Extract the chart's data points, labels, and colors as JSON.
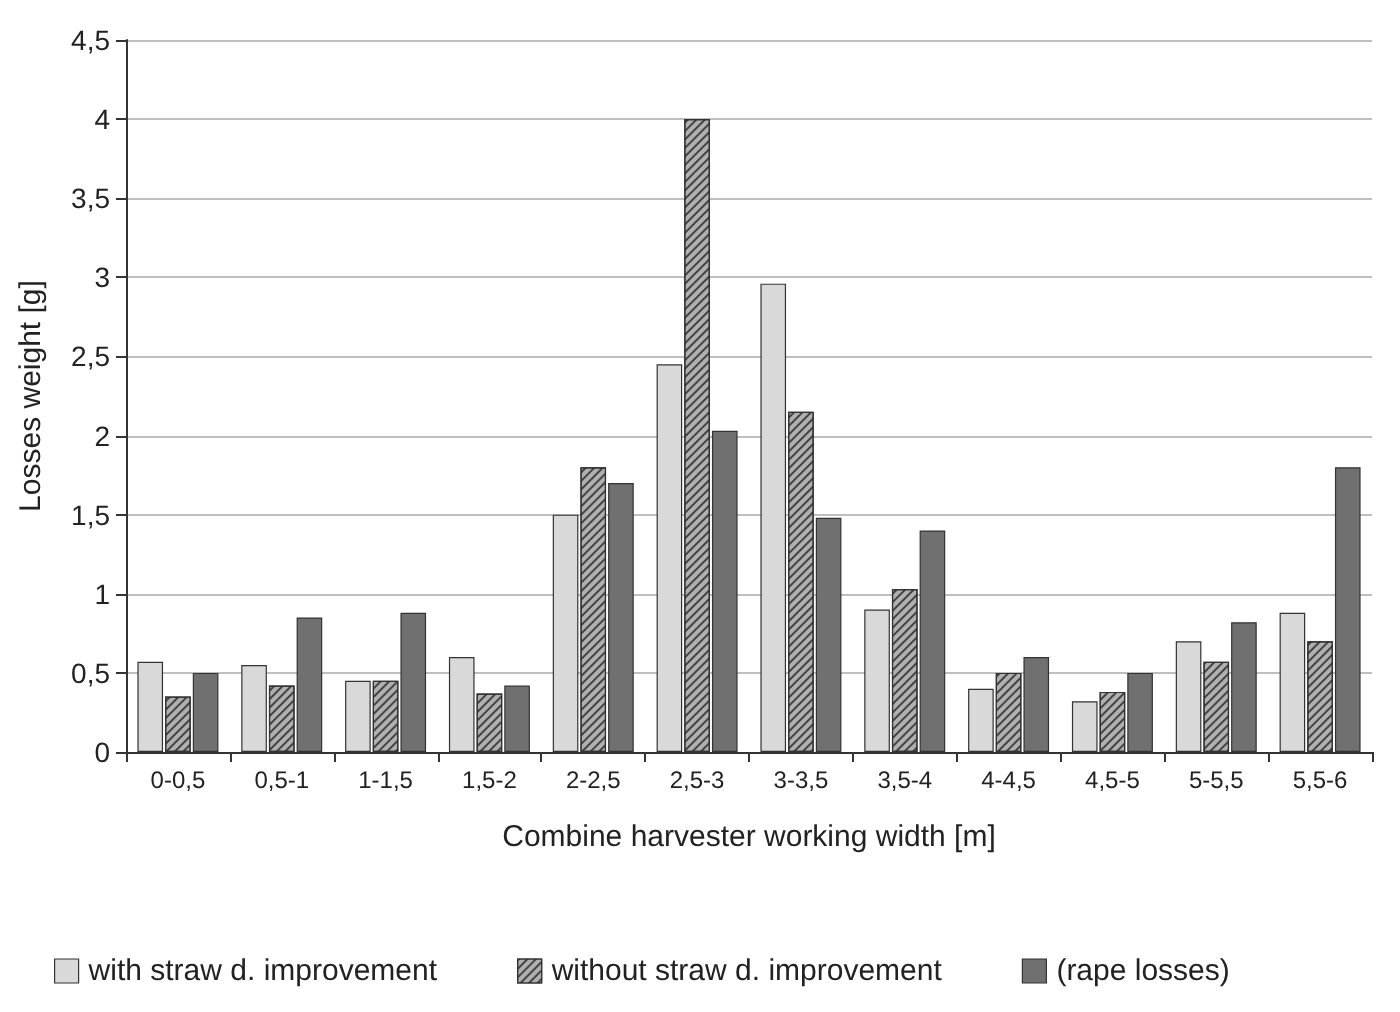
{
  "chart_data": {
    "type": "bar",
    "xlabel": "Combine harvester working width [m]",
    "ylabel": "Losses weight [g]",
    "categories": [
      "0-0,5",
      "0,5-1",
      "1-1,5",
      "1,5-2",
      "2-2,5",
      "2,5-3",
      "3-3,5",
      "3,5-4",
      "4-4,5",
      "4,5-5",
      "5-5,5",
      "5,5-6"
    ],
    "series": [
      {
        "name": "with straw d. improvement",
        "color": "#d9d9d9",
        "values": [
          0.57,
          0.55,
          0.45,
          0.6,
          1.5,
          2.45,
          2.96,
          0.9,
          0.4,
          0.32,
          0.7,
          0.88
        ]
      },
      {
        "name": "without straw d. improvement",
        "color": "#b0b0b0",
        "values": [
          0.35,
          0.42,
          0.45,
          0.37,
          1.8,
          4.0,
          2.15,
          1.03,
          0.5,
          0.38,
          0.57,
          0.7
        ]
      },
      {
        "name": "(rape losses)",
        "color": "#707070",
        "values": [
          0.5,
          0.85,
          0.88,
          0.42,
          1.7,
          2.03,
          1.48,
          1.4,
          0.6,
          0.5,
          0.82,
          1.8
        ]
      }
    ],
    "ylim": [
      0,
      4.5
    ],
    "yticks": [
      0,
      {
        "value": 0.5,
        "label": "0,5"
      },
      1,
      {
        "value": 1.5,
        "label": "1,5"
      },
      2,
      {
        "value": 2.5,
        "label": "2,5"
      },
      3,
      {
        "value": 3.5,
        "label": "3,5"
      },
      4,
      {
        "value": 4.5,
        "label": "4,5"
      }
    ],
    "grid": "y",
    "legend": "bottom"
  }
}
